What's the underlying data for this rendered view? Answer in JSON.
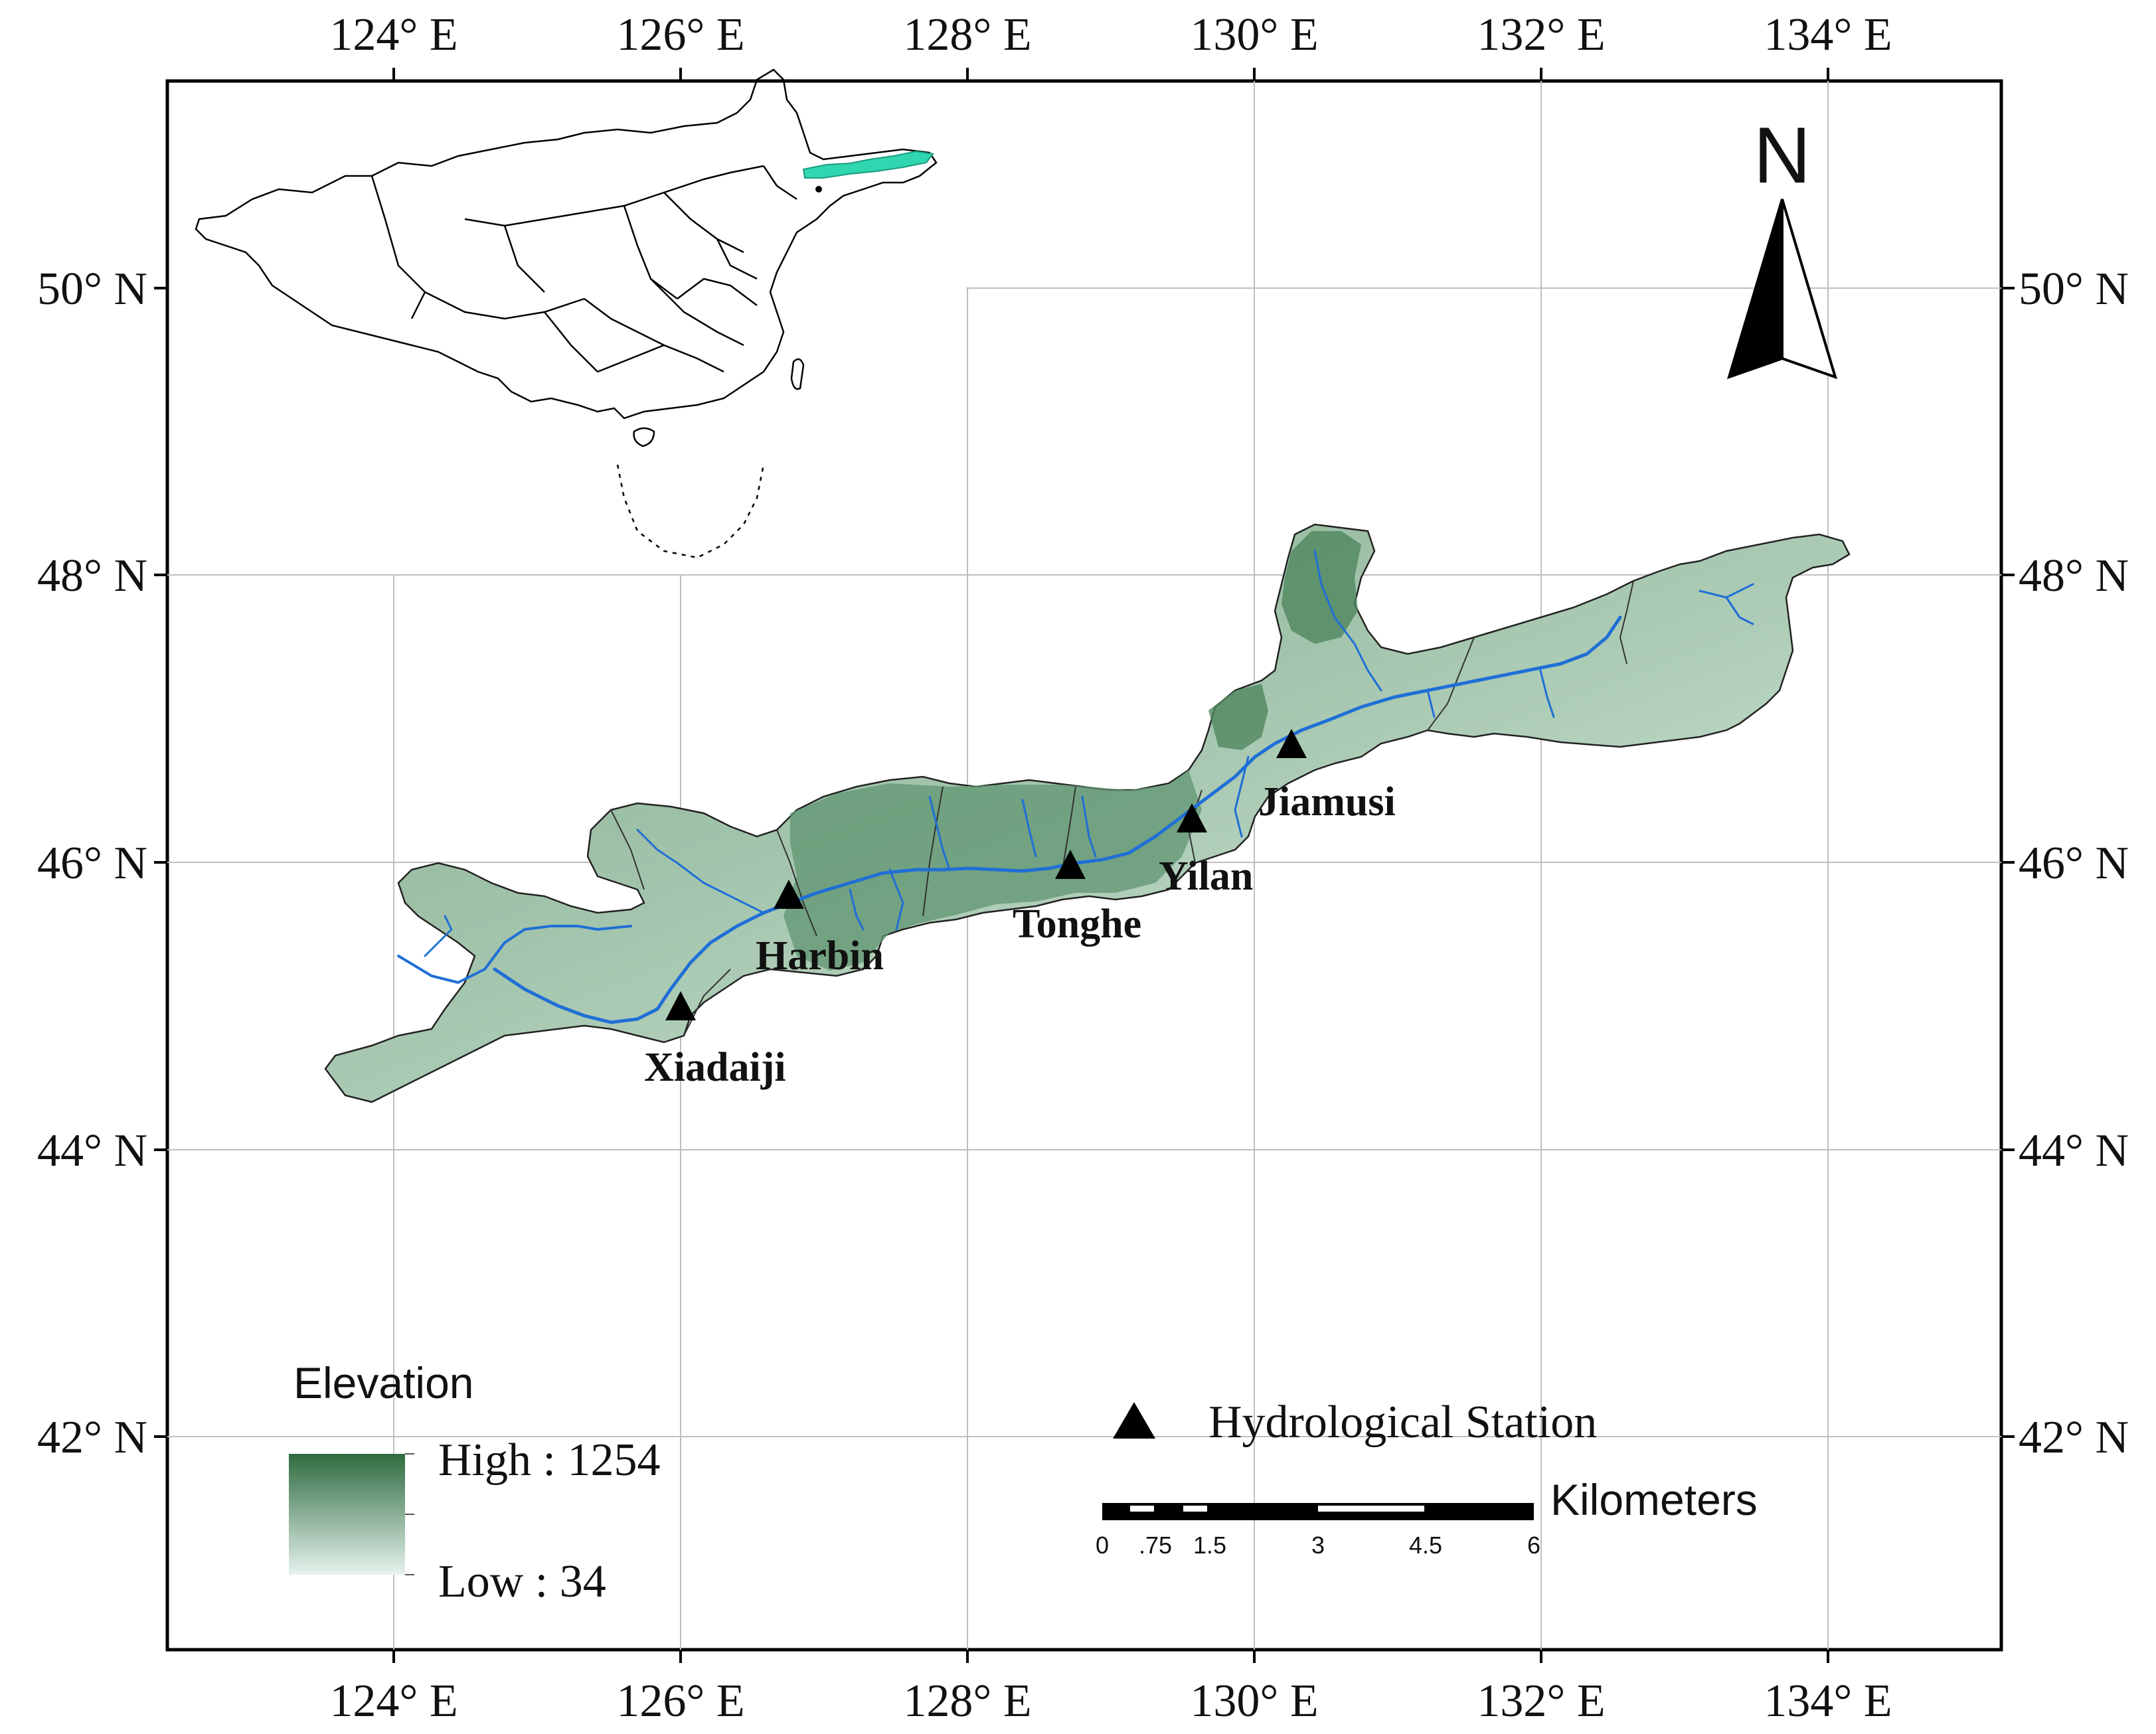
{
  "map": {
    "lon_ticks": [
      "124° E",
      "126° E",
      "128° E",
      "130° E",
      "132° E",
      "134° E"
    ],
    "lat_ticks": [
      "50° N",
      "48° N",
      "46° N",
      "44° N",
      "42° N"
    ]
  },
  "north_arrow": {
    "label": "N"
  },
  "stations": [
    {
      "name": "Xiadaiji"
    },
    {
      "name": "Harbin"
    },
    {
      "name": "Tonghe"
    },
    {
      "name": "Yilan"
    },
    {
      "name": "Jiamusi"
    }
  ],
  "legend": {
    "elevation_title": "Elevation",
    "high_label": "High : 1254",
    "low_label": "Low : 34",
    "gradient_high_color": "#2e6b3f",
    "gradient_low_color": "#e6f3ee",
    "station_label": "Hydrological Station"
  },
  "scale_bar": {
    "unit": "Kilometers",
    "ticks": [
      "0",
      ".75",
      "1.5",
      "3",
      "4.5",
      "6"
    ]
  },
  "colors": {
    "river": "#1f6fd6",
    "inset_highlight": "#2fd6b0",
    "grid": "#bfbfbf"
  }
}
